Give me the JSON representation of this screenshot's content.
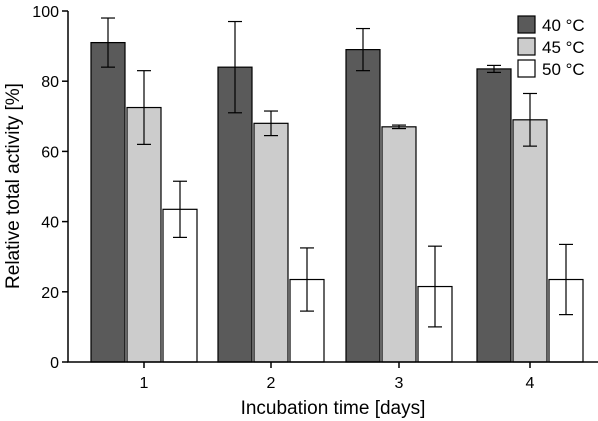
{
  "chart_data": {
    "type": "bar",
    "title": "",
    "xlabel": "Incubation time [days]",
    "ylabel": "Relative total activity [%]",
    "ylim": [
      0,
      100
    ],
    "yticks": [
      0,
      20,
      40,
      60,
      80,
      100
    ],
    "categories": [
      "1",
      "2",
      "3",
      "4"
    ],
    "series": [
      {
        "name": "40 °C",
        "color": "#5a5a5a",
        "values": [
          91,
          84,
          89,
          83.5
        ],
        "errors": [
          7,
          13,
          6,
          1
        ]
      },
      {
        "name": "45 °C",
        "color": "#cccccc",
        "values": [
          72.5,
          68,
          67,
          69
        ],
        "errors": [
          10.5,
          3.5,
          0.5,
          7.5
        ]
      },
      {
        "name": "50 °C",
        "color": "#ffffff",
        "values": [
          43.5,
          23.5,
          21.5,
          23.5
        ],
        "errors": [
          8,
          9,
          11.5,
          10
        ]
      }
    ],
    "legend_position": "top-right",
    "grid": false,
    "error_bars": true
  }
}
